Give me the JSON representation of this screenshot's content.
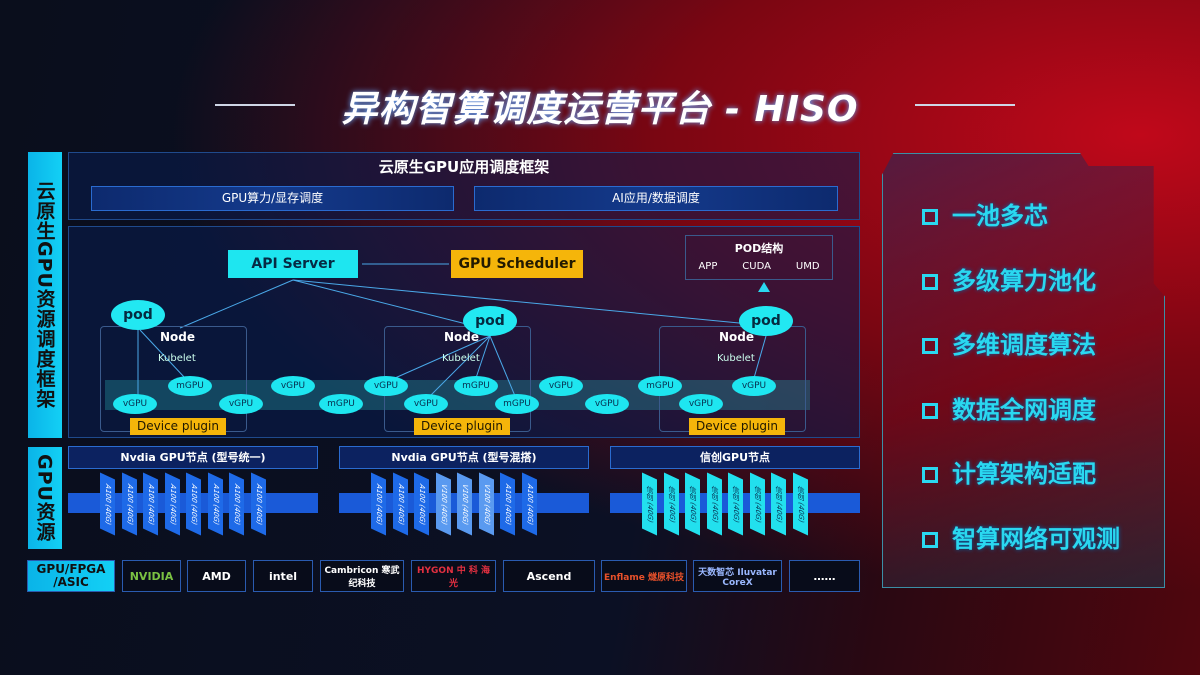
{
  "title": "异构智算调度运营平台 - HISO",
  "left_labels": {
    "top": "云原生GPU资源调度框架",
    "bottom": "GPU资源"
  },
  "framework": {
    "title": "云原生GPU应用调度框架",
    "sub": [
      "GPU算力/显存调度",
      "AI应用/数据调度"
    ]
  },
  "api_server": "API Server",
  "gpu_scheduler": "GPU Scheduler",
  "pod_struct": {
    "title": "POD结构",
    "items": [
      "APP",
      "CUDA",
      "UMD"
    ]
  },
  "pod": "pod",
  "node": "Node",
  "kubelet": "Kubelet",
  "device_plugin": "Device plugin",
  "upper_units": [
    "mGPU",
    "vGPU",
    "vGPU",
    "mGPU",
    "vGPU",
    "mGPU",
    "vGPU"
  ],
  "lower_units": [
    "vGPU",
    "vGPU",
    "mGPU",
    "vGPU",
    "mGPU",
    "vGPU",
    "vGPU"
  ],
  "groups": [
    {
      "title": "Nvdia GPU节点 (型号统一)",
      "chips": [
        "A100 (40G)",
        "A100 (40G)",
        "A100 (40G)",
        "A100 (40G)",
        "A100 (40G)",
        "A100 (40G)",
        "A100 (40G)",
        "A100 (40G)"
      ]
    },
    {
      "title": "Nvdia GPU节点 (型号混搭)",
      "chips": [
        "A100 (40G)",
        "A100 (40G)",
        "A100 (40G)",
        "V100 (40G)",
        "V100 (40G)",
        "V100 (40G)",
        "A100 (40G)",
        "A100 (40G)"
      ]
    },
    {
      "title": "信创GPU节点",
      "chips": [
        "信创 (40G)",
        "信创 (40G)",
        "信创 (40G)",
        "信创 (40G)",
        "信创 (40G)",
        "信创 (40G)",
        "信创 (40G)",
        "信创 (40G)"
      ]
    }
  ],
  "vendors_label": "GPU/FPGA /ASIC",
  "vendors": [
    "NVIDIA",
    "AMD",
    "intel",
    "Cambricon 寒武纪科技",
    "HYGON 中 科 海 光",
    "Ascend",
    "Enflame 燧原科技",
    "天数智芯 Iluvatar CoreX",
    "……"
  ],
  "features": [
    "一池多芯",
    "多级算力池化",
    "多维调度算法",
    "数据全网调度",
    "计算架构适配",
    "智算网络可观测"
  ],
  "colors": {
    "cyan": "#1ee6f0",
    "yellow": "#f5b50a",
    "blue": "#1a5ad8",
    "red": "#c0081a"
  }
}
